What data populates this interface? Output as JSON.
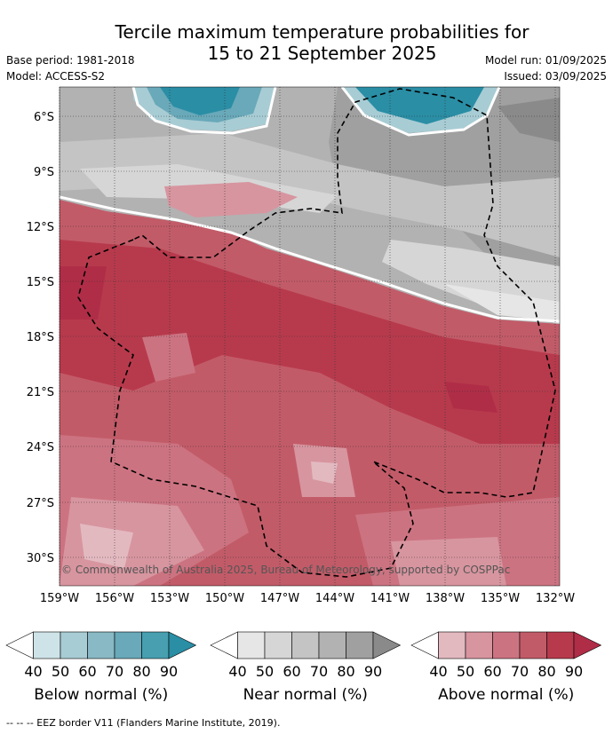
{
  "title_line1": "Tercile maximum temperature probabilities for",
  "title_line2": "15 to 21 September 2025",
  "base_period": "Base period: 1981-2018",
  "model": "Model: ACCESS-S2",
  "model_run": "Model run: 01/09/2025",
  "issued": "Issued: 03/09/2025",
  "latitude_labels": [
    "6°S",
    "9°S",
    "12°S",
    "15°S",
    "18°S",
    "21°S",
    "24°S",
    "27°S",
    "30°S"
  ],
  "longitude_labels": [
    "159°W",
    "156°W",
    "153°W",
    "150°W",
    "147°W",
    "144°W",
    "141°W",
    "138°W",
    "135°W",
    "132°W"
  ],
  "copyright": "© Commonwealth of Australia 2025, Bureau of Meteorology, supported by COSPPac",
  "footer": "-- -- -- EEZ border V11 (Flanders Marine Institute, 2019).",
  "colorbars": [
    {
      "label": "Below normal (%)",
      "ticks": [
        "40",
        "50",
        "60",
        "70",
        "80",
        "90"
      ],
      "colors": [
        "#ffffff",
        "#cde3e8",
        "#a8ccd4",
        "#88b9c5",
        "#69a9b9",
        "#479fb0",
        "#2a8ea5"
      ]
    },
    {
      "label": "Near normal (%)",
      "ticks": [
        "40",
        "50",
        "60",
        "70",
        "80",
        "90"
      ],
      "colors": [
        "#ffffff",
        "#e6e6e6",
        "#d6d6d6",
        "#c4c4c4",
        "#b2b2b2",
        "#a0a0a0",
        "#8a8a8a"
      ]
    },
    {
      "label": "Above normal (%)",
      "ticks": [
        "40",
        "50",
        "60",
        "70",
        "80",
        "90"
      ],
      "colors": [
        "#ffffff",
        "#e3b9c0",
        "#d7959f",
        "#cc7381",
        "#c25b68",
        "#b73a4c",
        "#b02d47"
      ]
    }
  ],
  "palette": {
    "near": [
      "#e6e6e6",
      "#d6d6d6",
      "#c4c4c4",
      "#b2b2b2",
      "#a0a0a0",
      "#8a8a8a"
    ],
    "above": [
      "#e3b9c0",
      "#d7959f",
      "#cc7381",
      "#c25b68",
      "#b73a4c",
      "#b02d47"
    ],
    "below": [
      "#a8ccd4",
      "#69a9b9",
      "#2a8ea5"
    ]
  }
}
